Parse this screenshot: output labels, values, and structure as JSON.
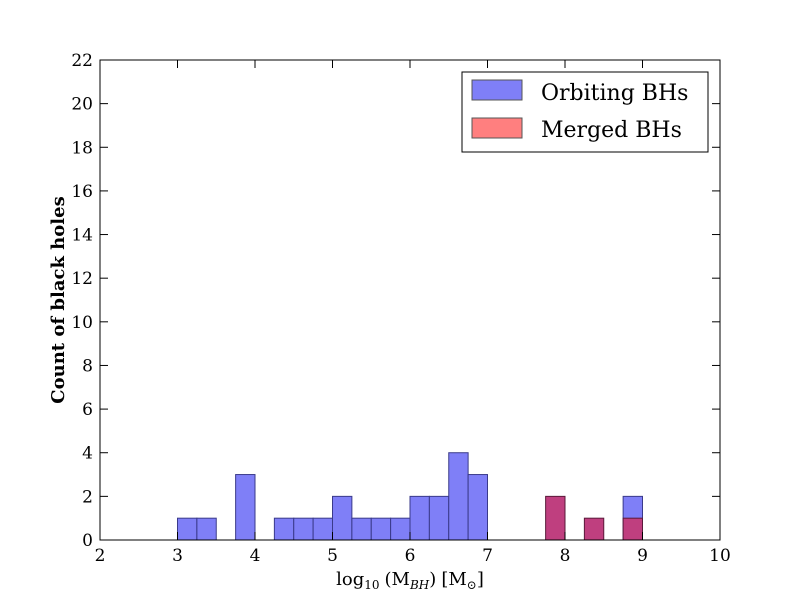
{
  "chart_data": {
    "type": "bar",
    "title": "",
    "xlabel": "log₁₀ (M_BH) [M⊙]",
    "xlabel_parts": {
      "func": "log",
      "func_sub": "10",
      "var_open": "(M",
      "var_sub": "BH",
      "var_close": ")",
      "unit_open": "[M",
      "unit_sub": "⊙",
      "unit_close": "]"
    },
    "ylabel": "Count of black holes",
    "xlim": [
      2,
      10
    ],
    "ylim": [
      0,
      22
    ],
    "xticks": [
      "2",
      "3",
      "4",
      "5",
      "6",
      "7",
      "8",
      "9",
      "10"
    ],
    "yticks": [
      "0",
      "2",
      "4",
      "6",
      "8",
      "10",
      "12",
      "14",
      "16",
      "18",
      "20",
      "22"
    ],
    "grid": false,
    "legend_position": "top-right",
    "bin_width": 0.25,
    "series": [
      {
        "name": "Orbiting BHs",
        "color": "#7f7ff7",
        "bins": [
          {
            "x0": 3.0,
            "count": 1
          },
          {
            "x0": 3.25,
            "count": 1
          },
          {
            "x0": 3.75,
            "count": 3
          },
          {
            "x0": 4.25,
            "count": 1
          },
          {
            "x0": 4.5,
            "count": 1
          },
          {
            "x0": 4.75,
            "count": 1
          },
          {
            "x0": 5.0,
            "count": 2
          },
          {
            "x0": 5.25,
            "count": 1
          },
          {
            "x0": 5.5,
            "count": 1
          },
          {
            "x0": 5.75,
            "count": 1
          },
          {
            "x0": 6.0,
            "count": 2
          },
          {
            "x0": 6.25,
            "count": 2
          },
          {
            "x0": 6.5,
            "count": 4
          },
          {
            "x0": 6.75,
            "count": 3
          },
          {
            "x0": 8.75,
            "count": 2
          }
        ]
      },
      {
        "name": "Merged BHs",
        "color": "#ff7f7f",
        "overlap_color": "#bf3f7f",
        "bins": [
          {
            "x0": 7.75,
            "count": 2
          },
          {
            "x0": 8.25,
            "count": 1
          },
          {
            "x0": 8.75,
            "count": 1
          }
        ]
      }
    ]
  }
}
